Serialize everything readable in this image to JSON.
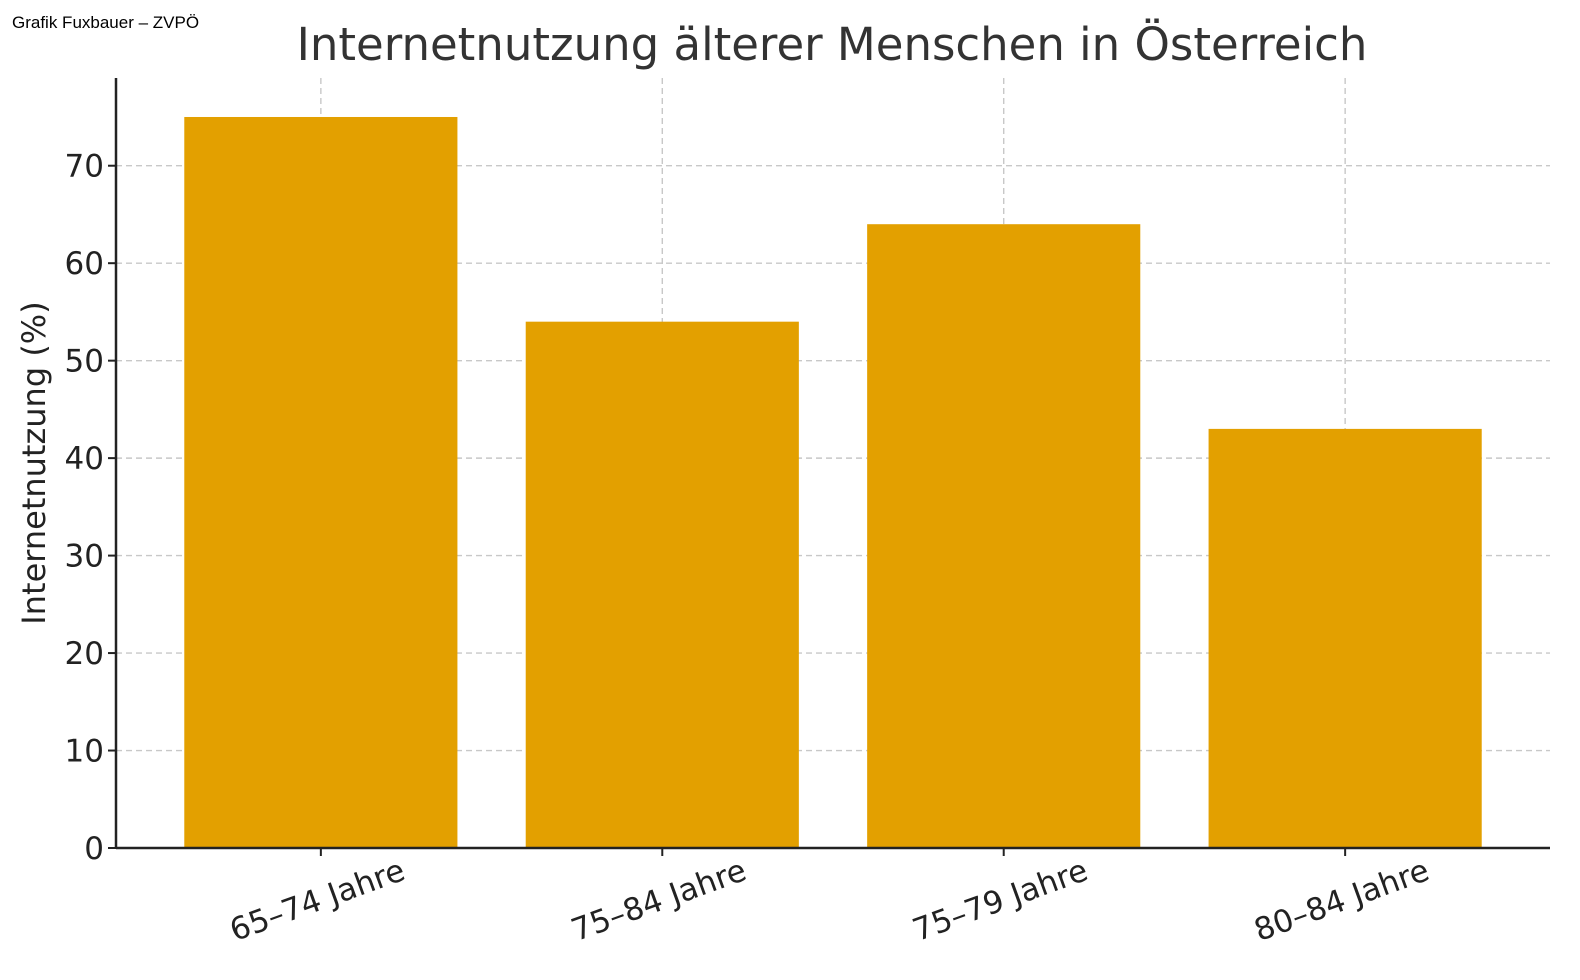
{
  "credit": "Grafik Fuxbauer – ZVPÖ",
  "chart_data": {
    "type": "bar",
    "title": "Internetnutzung älterer Menschen in Österreich",
    "xlabel": "",
    "ylabel": "Internetnutzung (%)",
    "categories": [
      "65–74 Jahre",
      "75–84 Jahre",
      "75–79 Jahre",
      "80–84 Jahre"
    ],
    "values": [
      75,
      54,
      64,
      43
    ],
    "ylim": [
      0,
      79
    ],
    "yticks": [
      0,
      10,
      20,
      30,
      40,
      50,
      60,
      70
    ],
    "grid": true,
    "bar_color": "#E3A000",
    "x_tick_rotation_deg": -20
  }
}
